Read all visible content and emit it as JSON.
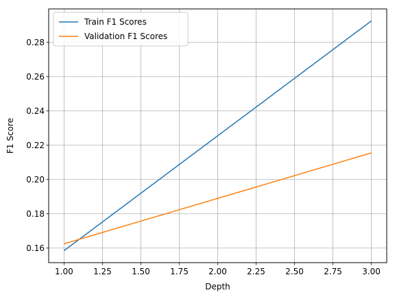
{
  "chart_data": {
    "type": "line",
    "title": "",
    "xlabel": "Depth",
    "ylabel": "F1 Score",
    "xlim": [
      0.9,
      3.1
    ],
    "ylim": [
      0.1515,
      0.2995
    ],
    "xticks": [
      1.0,
      1.25,
      1.5,
      1.75,
      2.0,
      2.25,
      2.5,
      2.75,
      3.0
    ],
    "xtick_labels": [
      "1.00",
      "1.25",
      "1.50",
      "1.75",
      "2.00",
      "2.25",
      "2.50",
      "2.75",
      "3.00"
    ],
    "yticks": [
      0.16,
      0.18,
      0.2,
      0.22,
      0.24,
      0.26,
      0.28
    ],
    "ytick_labels": [
      "0.16",
      "0.18",
      "0.20",
      "0.22",
      "0.24",
      "0.26",
      "0.28"
    ],
    "grid": true,
    "legend_position": "top-left",
    "x": [
      1.0,
      3.0
    ],
    "series": [
      {
        "name": "Train F1 Scores",
        "values": [
          0.1585,
          0.2925
        ],
        "color": "#1f77b4"
      },
      {
        "name": "Validation F1 Scores",
        "values": [
          0.1625,
          0.2155
        ],
        "color": "#ff7f0e"
      }
    ]
  }
}
